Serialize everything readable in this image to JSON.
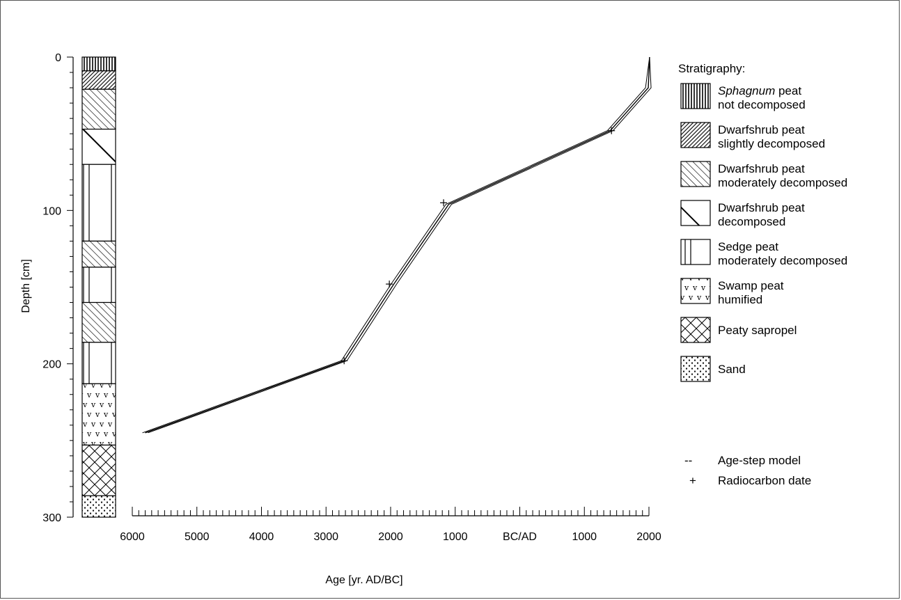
{
  "chart_data": {
    "type": "line",
    "xlabel": "Age [yr. AD/BC]",
    "ylabel": "Depth [cm]",
    "y_ticks": [
      "0",
      "100",
      "200",
      "300"
    ],
    "y_tick_values": [
      0,
      100,
      200,
      300
    ],
    "ylim": [
      0,
      300
    ],
    "x_ticks": [
      "6000",
      "5000",
      "4000",
      "3000",
      "2000",
      "1000",
      "BC/AD",
      "1000",
      "2000"
    ],
    "x_tick_values": [
      -6000,
      -5000,
      -4000,
      -3000,
      -2000,
      -1000,
      0,
      1000,
      2000
    ],
    "xlim": [
      -6000,
      2000
    ],
    "series": [
      {
        "points": [
          {
            "age": 2010,
            "depth": 0
          },
          {
            "age": 1990,
            "depth": 20
          },
          {
            "age": 1400,
            "depth": 48
          },
          {
            "age": -1100,
            "depth": 96
          },
          {
            "age": -1950,
            "depth": 148
          },
          {
            "age": -2720,
            "depth": 198
          },
          {
            "age": -5800,
            "depth": 245
          }
        ]
      }
    ],
    "radiocarbon_dates": [
      {
        "age": 1420,
        "depth": 48
      },
      {
        "age": -1180,
        "depth": 95
      },
      {
        "age": -2020,
        "depth": 148
      },
      {
        "age": -2720,
        "depth": 198
      }
    ],
    "stratigraphy_column": [
      {
        "top": 0,
        "bottom": 9,
        "type": "sphagnum"
      },
      {
        "top": 9,
        "bottom": 21,
        "type": "dwarf-slight"
      },
      {
        "top": 21,
        "bottom": 47,
        "type": "dwarf-moderate"
      },
      {
        "top": 47,
        "bottom": 70,
        "type": "dwarf-decomposed"
      },
      {
        "top": 70,
        "bottom": 120,
        "type": "sedge"
      },
      {
        "top": 120,
        "bottom": 137,
        "type": "dwarf-moderate"
      },
      {
        "top": 137,
        "bottom": 160,
        "type": "sedge"
      },
      {
        "top": 160,
        "bottom": 186,
        "type": "dwarf-moderate"
      },
      {
        "top": 186,
        "bottom": 213,
        "type": "sedge"
      },
      {
        "top": 213,
        "bottom": 253,
        "type": "swamp"
      },
      {
        "top": 253,
        "bottom": 286,
        "type": "sapropel"
      },
      {
        "top": 286,
        "bottom": 300,
        "type": "sand"
      }
    ]
  },
  "legend": {
    "title": "Stratigraphy:",
    "items": [
      {
        "type": "sphagnum",
        "line1_italic": "Sphagnum",
        "line1_rest": " peat",
        "line2": "not decomposed"
      },
      {
        "type": "dwarf-slight",
        "line1_italic": "",
        "line1_rest": "Dwarfshrub peat",
        "line2": "slightly decomposed"
      },
      {
        "type": "dwarf-moderate",
        "line1_italic": "",
        "line1_rest": "Dwarfshrub peat",
        "line2": "moderately decomposed"
      },
      {
        "type": "dwarf-decomposed",
        "line1_italic": "",
        "line1_rest": "Dwarfshrub peat",
        "line2": "decomposed"
      },
      {
        "type": "sedge",
        "line1_italic": "",
        "line1_rest": "Sedge peat",
        "line2": "moderately decomposed"
      },
      {
        "type": "swamp",
        "line1_italic": "",
        "line1_rest": "Swamp peat",
        "line2": "humified"
      },
      {
        "type": "sapropel",
        "line1_italic": "",
        "line1_rest": "Peaty sapropel",
        "line2": ""
      },
      {
        "type": "sand",
        "line1_italic": "",
        "line1_rest": "Sand",
        "line2": ""
      }
    ],
    "model_symbol": "--",
    "model_label": "Age-step model",
    "date_symbol": "+",
    "date_label": "Radiocarbon date"
  }
}
